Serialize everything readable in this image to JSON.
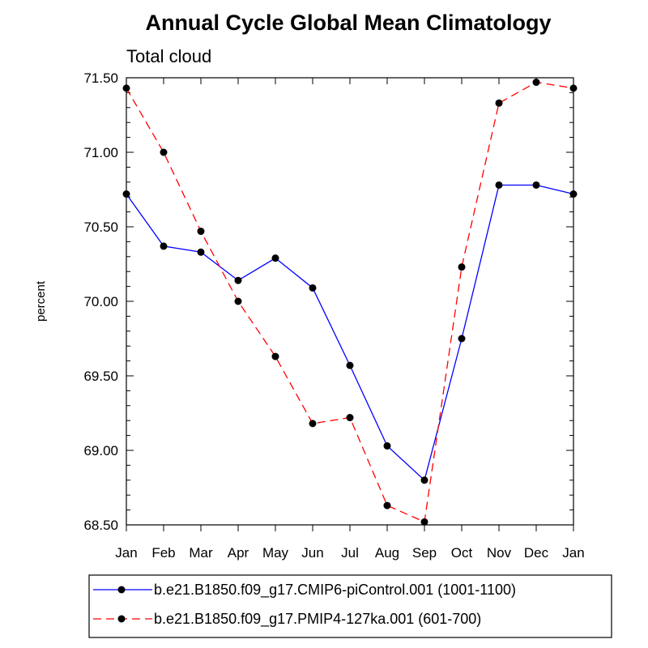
{
  "chart_data": {
    "type": "line",
    "title": "Annual Cycle Global Mean Climatology",
    "subtitle": "Total cloud",
    "ylabel": "percent",
    "xlabel": "",
    "categories": [
      "Jan",
      "Feb",
      "Mar",
      "Apr",
      "May",
      "Jun",
      "Jul",
      "Aug",
      "Sep",
      "Oct",
      "Nov",
      "Dec",
      "Jan"
    ],
    "ylim": [
      68.5,
      71.5
    ],
    "yticks": [
      "71.50",
      "71.00",
      "70.50",
      "70.00",
      "69.50",
      "69.00",
      "68.50"
    ],
    "grid": false,
    "legend_position": "bottom",
    "series": [
      {
        "name": "b.e21.B1850.f09_g17.CMIP6-piControl.001 (1001-1100)",
        "color": "#0000ff",
        "line_style": "solid",
        "marker": "filled-circle",
        "values": [
          70.72,
          70.37,
          70.33,
          70.14,
          70.29,
          70.09,
          69.57,
          69.03,
          68.8,
          69.75,
          70.78,
          70.78,
          70.72
        ]
      },
      {
        "name": "b.e21.B1850.f09_g17.PMIP4-127ka.001 (601-700)",
        "color": "#ff0000",
        "line_style": "dashed",
        "marker": "filled-circle",
        "values": [
          71.43,
          71.0,
          70.47,
          70.0,
          69.63,
          69.18,
          69.22,
          68.63,
          68.52,
          70.23,
          71.33,
          71.47,
          71.43
        ]
      }
    ]
  }
}
